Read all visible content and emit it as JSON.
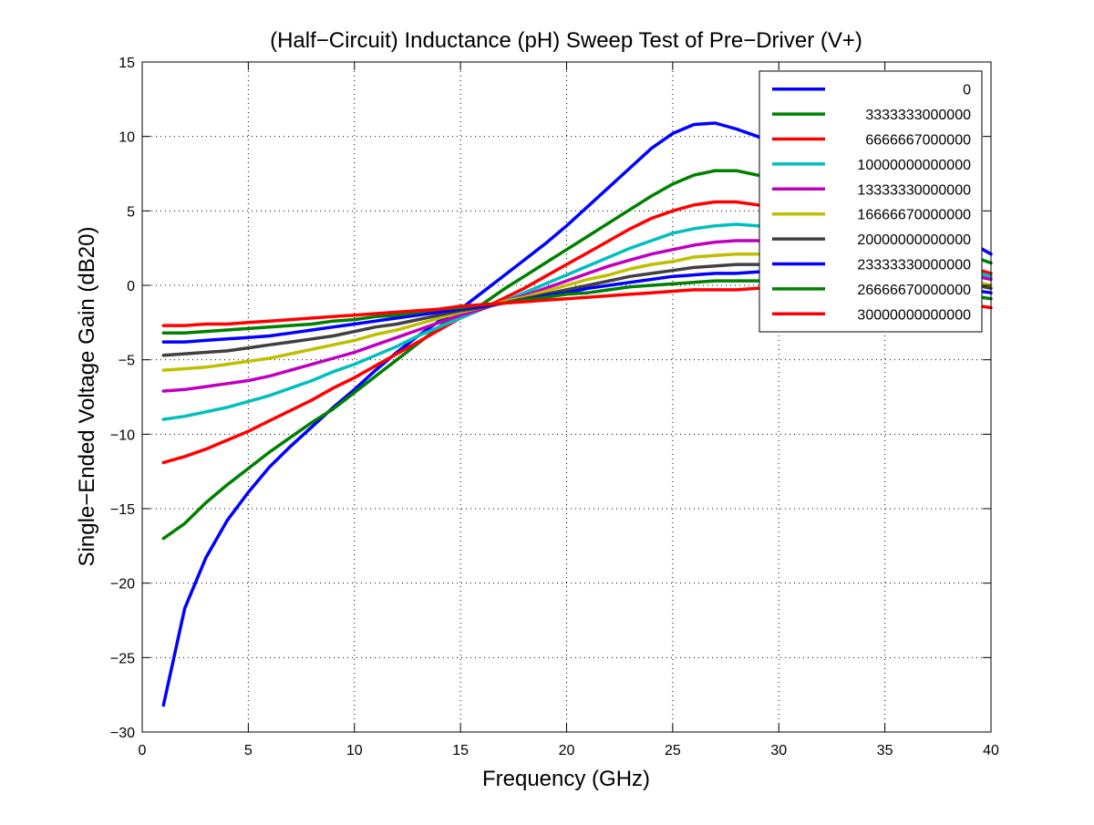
{
  "chart_data": {
    "type": "line",
    "title": "(Half−Circuit) Inductance (pH) Sweep Test of Pre−Driver (V+)",
    "xlabel": "Frequency (GHz)",
    "ylabel": "Single−Ended Voltage Gain (dB20)",
    "xlim": [
      0,
      40
    ],
    "ylim": [
      -30,
      15
    ],
    "x_ticks": [
      0,
      5,
      10,
      15,
      20,
      25,
      30,
      35,
      40
    ],
    "y_ticks": [
      -30,
      -25,
      -20,
      -15,
      -10,
      -5,
      0,
      5,
      10,
      15
    ],
    "x_tick_labels": [
      "0",
      "5",
      "10",
      "15",
      "20",
      "25",
      "30",
      "35",
      "40"
    ],
    "y_tick_labels": [
      "−30",
      "−25",
      "−20",
      "−15",
      "−10",
      "−5",
      "0",
      "5",
      "10",
      "15"
    ],
    "grid": true,
    "legend_position": "top-right",
    "x": [
      1,
      2,
      3,
      4,
      5,
      6,
      7,
      8,
      9,
      10,
      11,
      12,
      13,
      14,
      15,
      16,
      17,
      18,
      19,
      20,
      21,
      22,
      23,
      24,
      25,
      26,
      27,
      28,
      29,
      30,
      31,
      32,
      33,
      34,
      35,
      36,
      37,
      38,
      39,
      40
    ],
    "series": [
      {
        "name": "0",
        "color": "#0000ff",
        "values": [
          -28.2,
          -21.7,
          -18.3,
          -15.8,
          -13.9,
          -12.2,
          -10.8,
          -9.5,
          -8.2,
          -7.0,
          -5.7,
          -4.5,
          -3.4,
          -2.4,
          -1.6,
          -0.5,
          0.6,
          1.7,
          2.8,
          4.0,
          5.3,
          6.6,
          7.9,
          9.2,
          10.2,
          10.8,
          10.9,
          10.5,
          10.0,
          9.4,
          8.6,
          7.8,
          7.0,
          6.2,
          5.5,
          4.8,
          4.1,
          3.5,
          2.9,
          2.1
        ]
      },
      {
        "name": "3333333000000",
        "color": "#008000",
        "values": [
          -17.0,
          -16.0,
          -14.6,
          -13.4,
          -12.3,
          -11.2,
          -10.2,
          -9.2,
          -8.3,
          -7.2,
          -6.1,
          -5.0,
          -3.9,
          -2.8,
          -1.8,
          -1.3,
          -0.3,
          0.6,
          1.5,
          2.4,
          3.3,
          4.2,
          5.1,
          6.0,
          6.8,
          7.4,
          7.7,
          7.7,
          7.4,
          7.0,
          6.5,
          5.9,
          5.3,
          4.7,
          4.1,
          3.6,
          3.0,
          2.5,
          2.0,
          1.5
        ]
      },
      {
        "name": "6666667000000",
        "color": "#ff0000",
        "values": [
          -11.9,
          -11.5,
          -11.0,
          -10.4,
          -9.8,
          -9.1,
          -8.4,
          -7.7,
          -6.9,
          -6.2,
          -5.4,
          -4.6,
          -3.8,
          -3.0,
          -2.2,
          -1.6,
          -0.9,
          -0.2,
          0.6,
          1.4,
          2.2,
          3.0,
          3.8,
          4.5,
          5.0,
          5.4,
          5.6,
          5.6,
          5.4,
          5.1,
          4.7,
          4.3,
          3.8,
          3.4,
          2.9,
          2.4,
          2.0,
          1.6,
          1.2,
          0.8
        ]
      },
      {
        "name": "10000000000000",
        "color": "#00bfbf",
        "values": [
          -9.0,
          -8.8,
          -8.5,
          -8.2,
          -7.8,
          -7.4,
          -6.9,
          -6.4,
          -5.8,
          -5.3,
          -4.7,
          -4.1,
          -3.4,
          -2.8,
          -2.2,
          -1.6,
          -1.1,
          -0.5,
          0.1,
          0.7,
          1.3,
          1.9,
          2.5,
          3.0,
          3.5,
          3.8,
          4.0,
          4.1,
          4.0,
          3.8,
          3.6,
          3.3,
          3.0,
          2.7,
          2.3,
          2.0,
          1.6,
          1.3,
          1.0,
          0.6
        ]
      },
      {
        "name": "13333330000000",
        "color": "#bf00bf",
        "values": [
          -7.1,
          -7.0,
          -6.8,
          -6.6,
          -6.4,
          -6.1,
          -5.7,
          -5.3,
          -4.9,
          -4.5,
          -4.0,
          -3.5,
          -3.0,
          -2.5,
          -2.0,
          -1.6,
          -1.1,
          -0.7,
          -0.2,
          0.3,
          0.8,
          1.3,
          1.7,
          2.1,
          2.4,
          2.7,
          2.9,
          3.0,
          3.0,
          2.9,
          2.8,
          2.6,
          2.4,
          2.1,
          1.9,
          1.6,
          1.3,
          1.0,
          0.7,
          0.4
        ]
      },
      {
        "name": "16666670000000",
        "color": "#bfbf00",
        "values": [
          -5.7,
          -5.6,
          -5.5,
          -5.3,
          -5.1,
          -4.9,
          -4.6,
          -4.3,
          -4.0,
          -3.7,
          -3.3,
          -3.0,
          -2.6,
          -2.2,
          -1.8,
          -1.5,
          -1.1,
          -0.8,
          -0.4,
          0.0,
          0.4,
          0.7,
          1.1,
          1.4,
          1.6,
          1.9,
          2.0,
          2.1,
          2.1,
          2.1,
          2.0,
          1.9,
          1.7,
          1.5,
          1.3,
          1.1,
          0.8,
          0.6,
          0.3,
          0.0
        ]
      },
      {
        "name": "20000000000000",
        "color": "#404040",
        "values": [
          -4.7,
          -4.6,
          -4.5,
          -4.4,
          -4.2,
          -4.0,
          -3.8,
          -3.6,
          -3.4,
          -3.1,
          -2.8,
          -2.6,
          -2.3,
          -2.0,
          -1.7,
          -1.5,
          -1.2,
          -0.9,
          -0.6,
          -0.3,
          0.0,
          0.3,
          0.6,
          0.8,
          1.0,
          1.2,
          1.3,
          1.4,
          1.4,
          1.4,
          1.4,
          1.3,
          1.2,
          1.1,
          0.9,
          0.7,
          0.5,
          0.3,
          0.1,
          -0.2
        ]
      },
      {
        "name": "23333330000000",
        "color": "#0000ff",
        "values": [
          -3.8,
          -3.8,
          -3.7,
          -3.6,
          -3.5,
          -3.4,
          -3.2,
          -3.0,
          -2.8,
          -2.6,
          -2.4,
          -2.2,
          -2.0,
          -1.8,
          -1.6,
          -1.4,
          -1.2,
          -1.0,
          -0.7,
          -0.5,
          -0.2,
          0.0,
          0.2,
          0.4,
          0.6,
          0.7,
          0.8,
          0.8,
          0.9,
          0.9,
          0.8,
          0.8,
          0.7,
          0.6,
          0.5,
          0.3,
          0.1,
          -0.1,
          -0.3,
          -0.5
        ]
      },
      {
        "name": "26666670000000",
        "color": "#008000",
        "values": [
          -3.2,
          -3.2,
          -3.1,
          -3.0,
          -2.9,
          -2.8,
          -2.7,
          -2.6,
          -2.4,
          -2.3,
          -2.1,
          -2.0,
          -1.8,
          -1.6,
          -1.5,
          -1.3,
          -1.2,
          -1.0,
          -0.8,
          -0.6,
          -0.5,
          -0.3,
          -0.1,
          0.0,
          0.1,
          0.2,
          0.3,
          0.3,
          0.3,
          0.3,
          0.3,
          0.3,
          0.2,
          0.1,
          0.0,
          -0.1,
          -0.3,
          -0.5,
          -0.7,
          -0.9
        ]
      },
      {
        "name": "30000000000000",
        "color": "#ff0000",
        "values": [
          -2.7,
          -2.7,
          -2.6,
          -2.6,
          -2.5,
          -2.4,
          -2.3,
          -2.2,
          -2.1,
          -2.0,
          -1.9,
          -1.8,
          -1.7,
          -1.6,
          -1.4,
          -1.3,
          -1.2,
          -1.1,
          -1.0,
          -0.9,
          -0.8,
          -0.7,
          -0.6,
          -0.5,
          -0.4,
          -0.3,
          -0.3,
          -0.3,
          -0.2,
          -0.2,
          -0.3,
          -0.3,
          -0.4,
          -0.5,
          -0.6,
          -0.7,
          -0.9,
          -1.1,
          -1.3,
          -1.5
        ]
      }
    ]
  }
}
